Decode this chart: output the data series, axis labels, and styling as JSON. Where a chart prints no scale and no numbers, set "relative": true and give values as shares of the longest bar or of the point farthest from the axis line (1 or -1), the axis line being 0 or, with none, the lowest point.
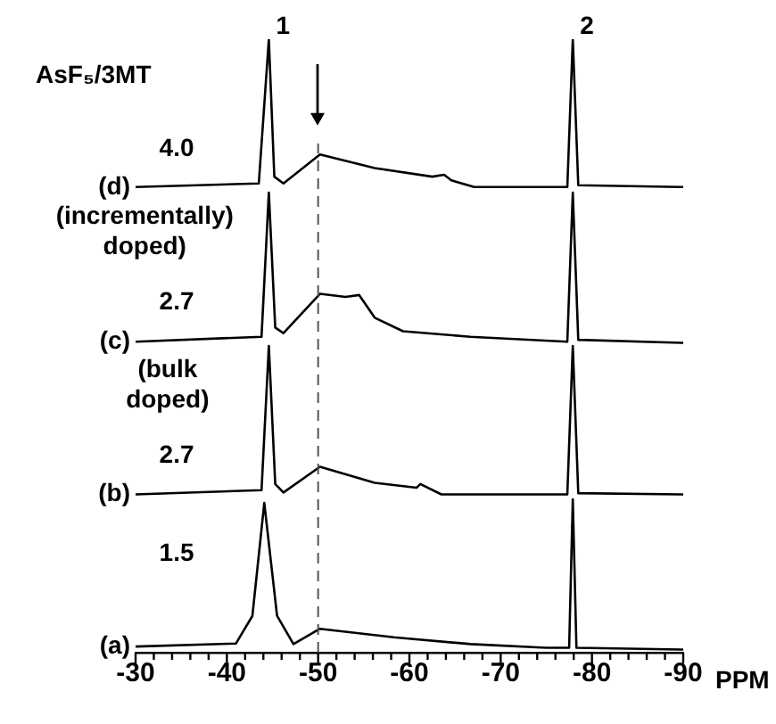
{
  "chart_data": {
    "type": "line",
    "title": "AsF₅/3MT",
    "xlabel": "PPM",
    "relative": true,
    "grid": false,
    "legend": false,
    "marker": "none",
    "line_style": "solid",
    "xlim": [
      -30,
      -90
    ],
    "xticks": [
      -30,
      {
        "value": -32,
        "label": null
      },
      {
        "value": -34,
        "label": null
      },
      {
        "value": -36,
        "label": null
      },
      {
        "value": -38,
        "label": null
      },
      -40,
      {
        "value": -42,
        "label": null
      },
      {
        "value": -44,
        "label": null
      },
      {
        "value": -46,
        "label": null
      },
      {
        "value": -48,
        "label": null
      },
      -50,
      {
        "value": -52,
        "label": null
      },
      {
        "value": -54,
        "label": null
      },
      {
        "value": -56,
        "label": null
      },
      {
        "value": -58,
        "label": null
      },
      -60,
      {
        "value": -62,
        "label": null
      },
      {
        "value": -64,
        "label": null
      },
      {
        "value": -66,
        "label": null
      },
      {
        "value": -68,
        "label": null
      },
      -70,
      {
        "value": -72,
        "label": null
      },
      {
        "value": -74,
        "label": null
      },
      {
        "value": -76,
        "label": null
      },
      {
        "value": -78,
        "label": null
      },
      -80,
      {
        "value": -82,
        "label": null
      },
      {
        "value": -84,
        "label": null
      },
      {
        "value": -86,
        "label": null
      },
      {
        "value": -88,
        "label": null
      },
      -90
    ],
    "series": [
      {
        "name": "(d)",
        "color": "#000000",
        "x": [
          -30,
          -43.5,
          -44.6,
          -45.2,
          -46.2,
          -50.2,
          -56.2,
          -62.5,
          -63.8,
          -64.6,
          -67.1,
          -77.3,
          -77.9,
          -78.5,
          -90
        ],
        "values": [
          0.759,
          0.765,
          1.0,
          0.776,
          0.765,
          0.812,
          0.79,
          0.776,
          0.779,
          0.77,
          0.759,
          0.759,
          1.0,
          0.762,
          0.759
        ]
      },
      {
        "name": "(c)",
        "color": "#000000",
        "x": [
          -30,
          -43.8,
          -44.6,
          -45.3,
          -46.2,
          -50.2,
          -53,
          -54.5,
          -56.2,
          -59.3,
          -66.7,
          -77.3,
          -77.9,
          -78.5,
          -90
        ],
        "values": [
          0.507,
          0.515,
          0.75,
          0.53,
          0.521,
          0.585,
          0.58,
          0.583,
          0.546,
          0.524,
          0.515,
          0.507,
          0.75,
          0.51,
          0.505
        ]
      },
      {
        "name": "(b)",
        "color": "#000000",
        "x": [
          -30,
          -43.8,
          -44.6,
          -45.3,
          -46.2,
          -50.2,
          -56.2,
          -60.8,
          -61.2,
          -63.5,
          -77.3,
          -77.9,
          -78.5,
          -90
        ],
        "values": [
          0.258,
          0.265,
          0.5,
          0.275,
          0.261,
          0.303,
          0.277,
          0.269,
          0.275,
          0.258,
          0.258,
          0.5,
          0.26,
          0.258
        ]
      },
      {
        "name": "(a)",
        "color": "#000000",
        "x": [
          -30,
          -41,
          -42.8,
          -44.1,
          -45.5,
          -47.3,
          -50.2,
          -58.3,
          -66.7,
          -75,
          -77.5,
          -77.9,
          -78.3,
          -90
        ],
        "values": [
          0.01,
          0.015,
          0.06,
          0.244,
          0.06,
          0.014,
          0.039,
          0.025,
          0.014,
          0.008,
          0.008,
          0.25,
          0.008,
          0.005
        ]
      }
    ],
    "ref_lines": [
      {
        "axis": "x",
        "value": -50,
        "color": "#555555",
        "line_style": "dashed"
      }
    ],
    "annotations": [
      {
        "text": "1",
        "x": -44.6,
        "y": 1.0
      },
      {
        "text": "2",
        "x": -77.9,
        "y": 1.0
      },
      "4.0",
      "(incrementally) doped)",
      "2.7",
      "(bulk doped)",
      "2.7",
      "1.5"
    ]
  }
}
